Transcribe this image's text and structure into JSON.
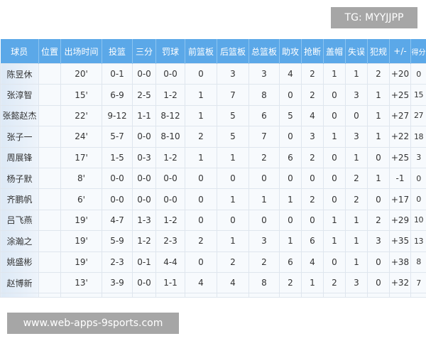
{
  "headers": [
    "球员",
    "位置",
    "出场时间",
    "投篮",
    "三分",
    "罚球",
    "前篮板",
    "后篮板",
    "总篮板",
    "助攻",
    "抢断",
    "盖帽",
    "失误",
    "犯规",
    "+/-",
    "得分"
  ],
  "rows": [
    [
      "陈昱休",
      "",
      "20'",
      "0-1",
      "0-0",
      "0-0",
      "0",
      "3",
      "3",
      "4",
      "2",
      "1",
      "1",
      "2",
      "+20",
      "0"
    ],
    [
      "张淳智",
      "",
      "15'",
      "6-9",
      "2-5",
      "1-2",
      "1",
      "7",
      "8",
      "0",
      "2",
      "0",
      "3",
      "1",
      "+25",
      "15"
    ],
    [
      "张懿赵杰",
      "",
      "22'",
      "9-12",
      "1-1",
      "8-12",
      "1",
      "5",
      "6",
      "5",
      "4",
      "0",
      "0",
      "1",
      "+27",
      "27"
    ],
    [
      "张子一",
      "",
      "24'",
      "5-7",
      "0-0",
      "8-10",
      "2",
      "5",
      "7",
      "0",
      "3",
      "1",
      "3",
      "1",
      "+22",
      "18"
    ],
    [
      "周展锋",
      "",
      "17'",
      "1-5",
      "0-3",
      "1-2",
      "1",
      "1",
      "2",
      "6",
      "2",
      "0",
      "1",
      "0",
      "+25",
      "3"
    ],
    [
      "杨子默",
      "",
      "8'",
      "0-0",
      "0-0",
      "0-0",
      "0",
      "0",
      "0",
      "0",
      "0",
      "0",
      "2",
      "1",
      "-1",
      "0"
    ],
    [
      "齐鹏帆",
      "",
      "6'",
      "0-0",
      "0-0",
      "0-0",
      "0",
      "1",
      "1",
      "1",
      "2",
      "0",
      "2",
      "0",
      "+17",
      "0"
    ],
    [
      "吕飞燕",
      "",
      "19'",
      "4-7",
      "1-3",
      "1-2",
      "0",
      "0",
      "0",
      "0",
      "0",
      "1",
      "1",
      "2",
      "+29",
      "10"
    ],
    [
      "涂瀚之",
      "",
      "19'",
      "5-9",
      "1-2",
      "2-3",
      "2",
      "1",
      "3",
      "1",
      "6",
      "1",
      "1",
      "3",
      "+35",
      "13"
    ],
    [
      "姚盛彬",
      "",
      "19'",
      "2-3",
      "0-1",
      "4-4",
      "0",
      "2",
      "2",
      "6",
      "4",
      "0",
      "1",
      "0",
      "+38",
      "8"
    ],
    [
      "赵博新",
      "",
      "13'",
      "3-9",
      "0-0",
      "1-1",
      "4",
      "4",
      "8",
      "2",
      "1",
      "2",
      "3",
      "0",
      "+32",
      "7"
    ]
  ],
  "watermarks": {
    "top": "TG: MYYJJPP",
    "bottom": "www.web-apps-9sports.com"
  },
  "colors": {
    "header": "#5ba8e8",
    "watermark": "#a6a6a6"
  }
}
